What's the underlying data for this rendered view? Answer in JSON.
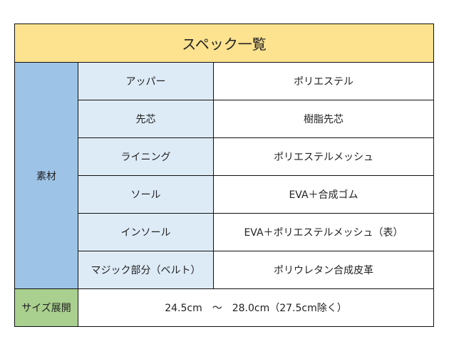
{
  "title": "スペック一覧",
  "category": "素材",
  "rows": [
    {
      "key": "アッパー",
      "value": "ポリエステル"
    },
    {
      "key": "先芯",
      "value": "樹脂先芯"
    },
    {
      "key": "ライニング",
      "value": "ポリエステルメッシュ"
    },
    {
      "key": "ソール",
      "value": "EVA＋合成ゴム"
    },
    {
      "key": "インソール",
      "value": "EVA＋ポリエステルメッシュ（表）"
    },
    {
      "key": "マジック部分（ベルト）",
      "value": "ポリウレタン合成皮革"
    }
  ],
  "size": {
    "label": "サイズ展開",
    "value": "24.5cm　～　28.0cm（27.5cm除く）"
  },
  "colors": {
    "title_bg": "#fde28f",
    "category_bg": "#9dc3e6",
    "key_bg": "#ddebf7",
    "size_bg": "#a9d08e"
  }
}
